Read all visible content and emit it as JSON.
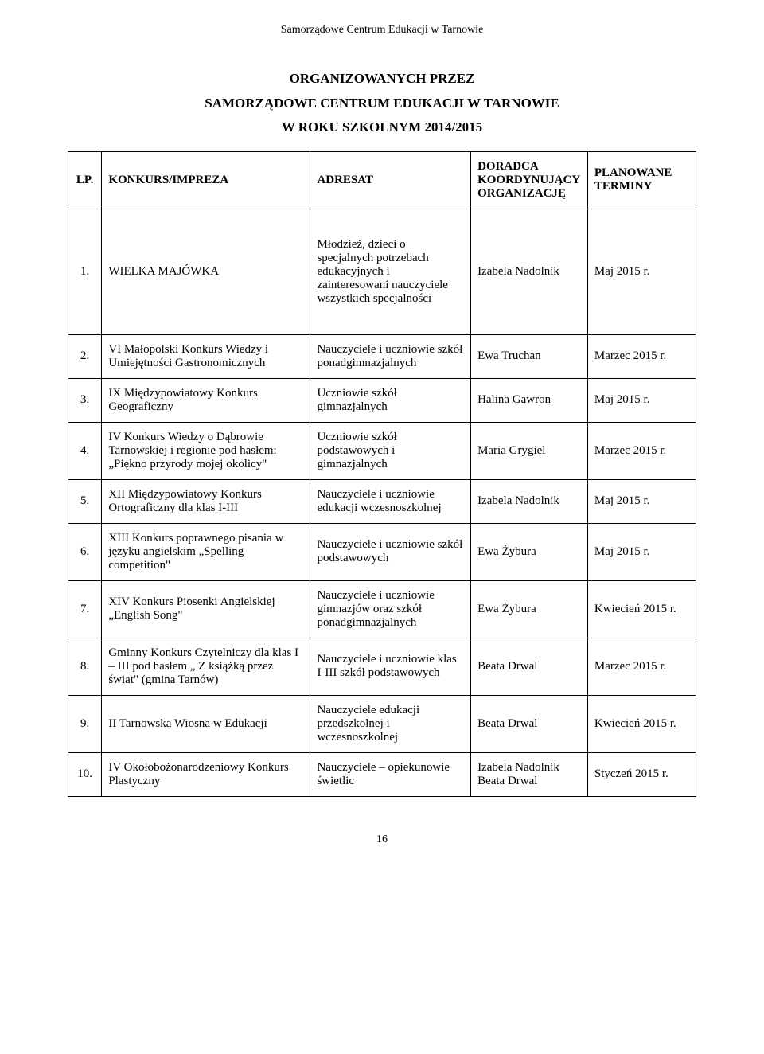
{
  "header": "Samorządowe Centrum Edukacji w Tarnowie",
  "titles": [
    "ORGANIZOWANYCH PRZEZ",
    "SAMORZĄDOWE CENTRUM EDUKACJI W TARNOWIE",
    "W ROKU SZKOLNYM 2014/2015"
  ],
  "columns": {
    "lp": "LP.",
    "konkurs": "KONKURS/IMPREZA",
    "adresat": "ADRESAT",
    "doradca": "DORADCA KOORDYNUJĄCY ORGANIZACJĘ",
    "terminy": "PLANOWANE TERMINY"
  },
  "rows": [
    {
      "lp": "1.",
      "konkurs": "WIELKA MAJÓWKA",
      "adresat": "Młodzież, dzieci o specjalnych potrzebach edukacyjnych i zainteresowani nauczyciele wszystkich specjalności",
      "doradca": "Izabela Nadolnik",
      "terminy": "Maj 2015 r.",
      "tall": true
    },
    {
      "lp": "2.",
      "konkurs": "VI Małopolski Konkurs Wiedzy i Umiejętności Gastronomicznych",
      "adresat": "Nauczyciele i uczniowie szkół ponadgimnazjalnych",
      "doradca": "Ewa Truchan",
      "terminy": "Marzec 2015 r."
    },
    {
      "lp": "3.",
      "konkurs": "IX Międzypowiatowy Konkurs Geograficzny",
      "adresat": "Uczniowie szkół gimnazjalnych",
      "doradca": "Halina Gawron",
      "terminy": "Maj 2015 r."
    },
    {
      "lp": "4.",
      "konkurs": "IV Konkurs Wiedzy o Dąbrowie Tarnowskiej i regionie pod hasłem: „Piękno przyrody mojej okolicy\"",
      "adresat": "Uczniowie szkół podstawowych  i gimnazjalnych",
      "doradca": "Maria Grygiel",
      "terminy": "Marzec 2015 r."
    },
    {
      "lp": "5.",
      "konkurs": "XII Międzypowiatowy Konkurs Ortograficzny dla klas I-III",
      "adresat": "Nauczyciele i uczniowie edukacji wczesnoszkolnej",
      "doradca": "Izabela Nadolnik",
      "terminy": "Maj 2015 r."
    },
    {
      "lp": "6.",
      "konkurs": "XIII Konkurs poprawnego pisania w języku angielskim „Spelling competition\"",
      "adresat": "Nauczyciele i uczniowie szkół podstawowych",
      "doradca": "Ewa Żybura",
      "terminy": "Maj 2015 r."
    },
    {
      "lp": "7.",
      "konkurs": "XIV Konkurs Piosenki Angielskiej „English Song\"",
      "adresat": "Nauczyciele i uczniowie gimnazjów oraz szkół ponadgimnazjalnych",
      "doradca": "Ewa Żybura",
      "terminy": "Kwiecień 2015 r."
    },
    {
      "lp": "8.",
      "konkurs": "Gminny Konkurs Czytelniczy dla klas I – III pod hasłem „ Z książką przez świat\" (gmina Tarnów)",
      "adresat": "Nauczyciele i uczniowie klas I-III szkół podstawowych",
      "doradca": "Beata Drwal",
      "terminy": "Marzec 2015 r."
    },
    {
      "lp": "9.",
      "konkurs": "II Tarnowska Wiosna w Edukacji",
      "adresat": "Nauczyciele edukacji przedszkolnej i wczesnoszkolnej",
      "doradca": "Beata Drwal",
      "terminy": "Kwiecień 2015 r."
    },
    {
      "lp": "10.",
      "konkurs": "IV Okołobożonarodzeniowy Konkurs Plastyczny",
      "adresat": "Nauczyciele – opiekunowie świetlic",
      "doradca": "Izabela Nadolnik Beata Drwal",
      "terminy": "Styczeń 2015 r."
    }
  ],
  "page_number": "16"
}
